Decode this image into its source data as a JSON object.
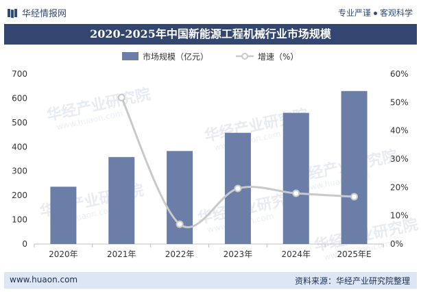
{
  "header": {
    "brand": "华经情报网",
    "slogan_part1": "专业严谨",
    "slogan_part2": "客观科学"
  },
  "footer": {
    "website": "www.huaon.com",
    "source": "资料来源：华经产业研究院整理"
  },
  "watermark": {
    "cn": "华经产业研究院",
    "en": "www.huaon.com"
  },
  "colors": {
    "bar": "#6b7ea8",
    "line": "#c9c9c9",
    "title_bg": "#32466f"
  },
  "chart_data": {
    "type": "bar",
    "title": "2020-2025年中国新能源工程机械行业市场规模",
    "categories": [
      "2020年",
      "2021年",
      "2022年",
      "2023年",
      "2024年",
      "2025年E"
    ],
    "series": [
      {
        "name": "市场规模（亿元）",
        "type": "bar",
        "axis": "left",
        "values": [
          236,
          358,
          383,
          458,
          540,
          630
        ]
      },
      {
        "name": "增速（%）",
        "type": "line",
        "axis": "right",
        "values": [
          null,
          51.7,
          7.0,
          19.6,
          17.9,
          16.7
        ]
      }
    ],
    "y_left": {
      "min": 0,
      "max": 700,
      "ticks": [
        "0",
        "100",
        "200",
        "300",
        "400",
        "500",
        "600",
        "700"
      ]
    },
    "y_right": {
      "min": 0,
      "max": 60,
      "ticks": [
        "0%",
        "10%",
        "20%",
        "30%",
        "40%",
        "50%",
        "60%"
      ]
    },
    "legend_position": "top-center",
    "grid": false
  }
}
